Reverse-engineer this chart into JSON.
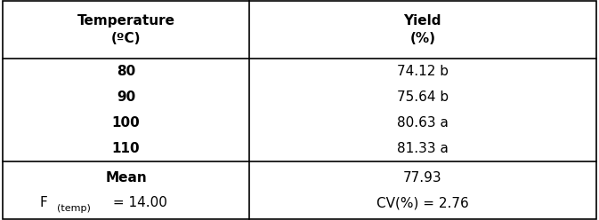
{
  "col_headers": [
    "Temperature\n(ºC)",
    "Yield\n(%)"
  ],
  "rows": [
    [
      "80",
      "74.12 b"
    ],
    [
      "90",
      "75.64 b"
    ],
    [
      "100",
      "80.63 a"
    ],
    [
      "110",
      "81.33 a"
    ]
  ],
  "footer_left_bold": "Mean",
  "footer_left_F": "F",
  "footer_left_sub": "(temp)",
  "footer_left_val": " = 14.00",
  "footer_right1": "77.93",
  "footer_right2": "CV(%) = 2.76",
  "fontsize": 11,
  "col_split": 0.415,
  "background_color": "#ffffff",
  "border_color": "#000000",
  "text_color": "#000000",
  "row_units": [
    2.2,
    1.0,
    1.0,
    1.0,
    1.0,
    2.2
  ]
}
